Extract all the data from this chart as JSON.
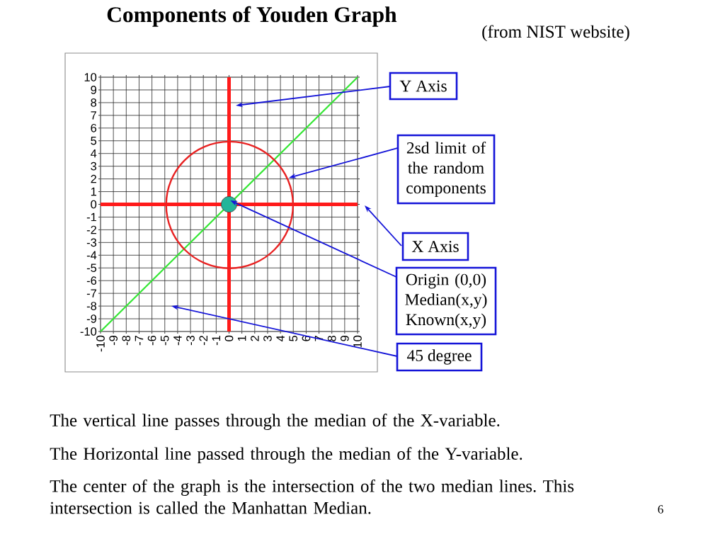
{
  "chart_data": {
    "type": "scatter",
    "title": "Components of Youden Graph",
    "subtitle": "(from NIST website)",
    "xlim": [
      -10,
      10
    ],
    "ylim": [
      -10,
      10
    ],
    "xticks": [
      -10,
      -9,
      -8,
      -7,
      -6,
      -5,
      -4,
      -3,
      -2,
      -1,
      0,
      1,
      2,
      3,
      4,
      5,
      6,
      7,
      8,
      9,
      10
    ],
    "yticks": [
      -10,
      -9,
      -8,
      -7,
      -6,
      -5,
      -4,
      -3,
      -2,
      -1,
      0,
      1,
      2,
      3,
      4,
      5,
      6,
      7,
      8,
      9,
      10
    ],
    "grid": true,
    "series": [
      {
        "type": "line",
        "color": "#ff1a1a",
        "x": [
          0,
          0
        ],
        "values": [
          -10,
          10
        ]
      },
      {
        "type": "line",
        "color": "#ff1a1a",
        "x": [
          -10,
          10
        ],
        "values": [
          0,
          0
        ]
      },
      {
        "type": "line",
        "color": "#33e633",
        "x": [
          -10,
          10
        ],
        "values": [
          -10,
          10
        ]
      },
      {
        "color": "#22b59a",
        "marker": "circle",
        "x": [
          0
        ],
        "values": [
          0
        ]
      }
    ],
    "annotations": [
      "Y Axis",
      "2sd limit of the random components",
      "X Axis",
      {
        "text": "Origin (0,0) Median(x,y) Known(x,y)",
        "x": 0.1,
        "y": 0.3
      },
      "45 degree",
      "The vertical line passes through the median of the X-variable.",
      "The Horizontal line passed through the median of the Y-variable.",
      "The center of the graph is the intersection of the two median lines. This intersection is called the Manhattan Median.",
      "6"
    ]
  }
}
